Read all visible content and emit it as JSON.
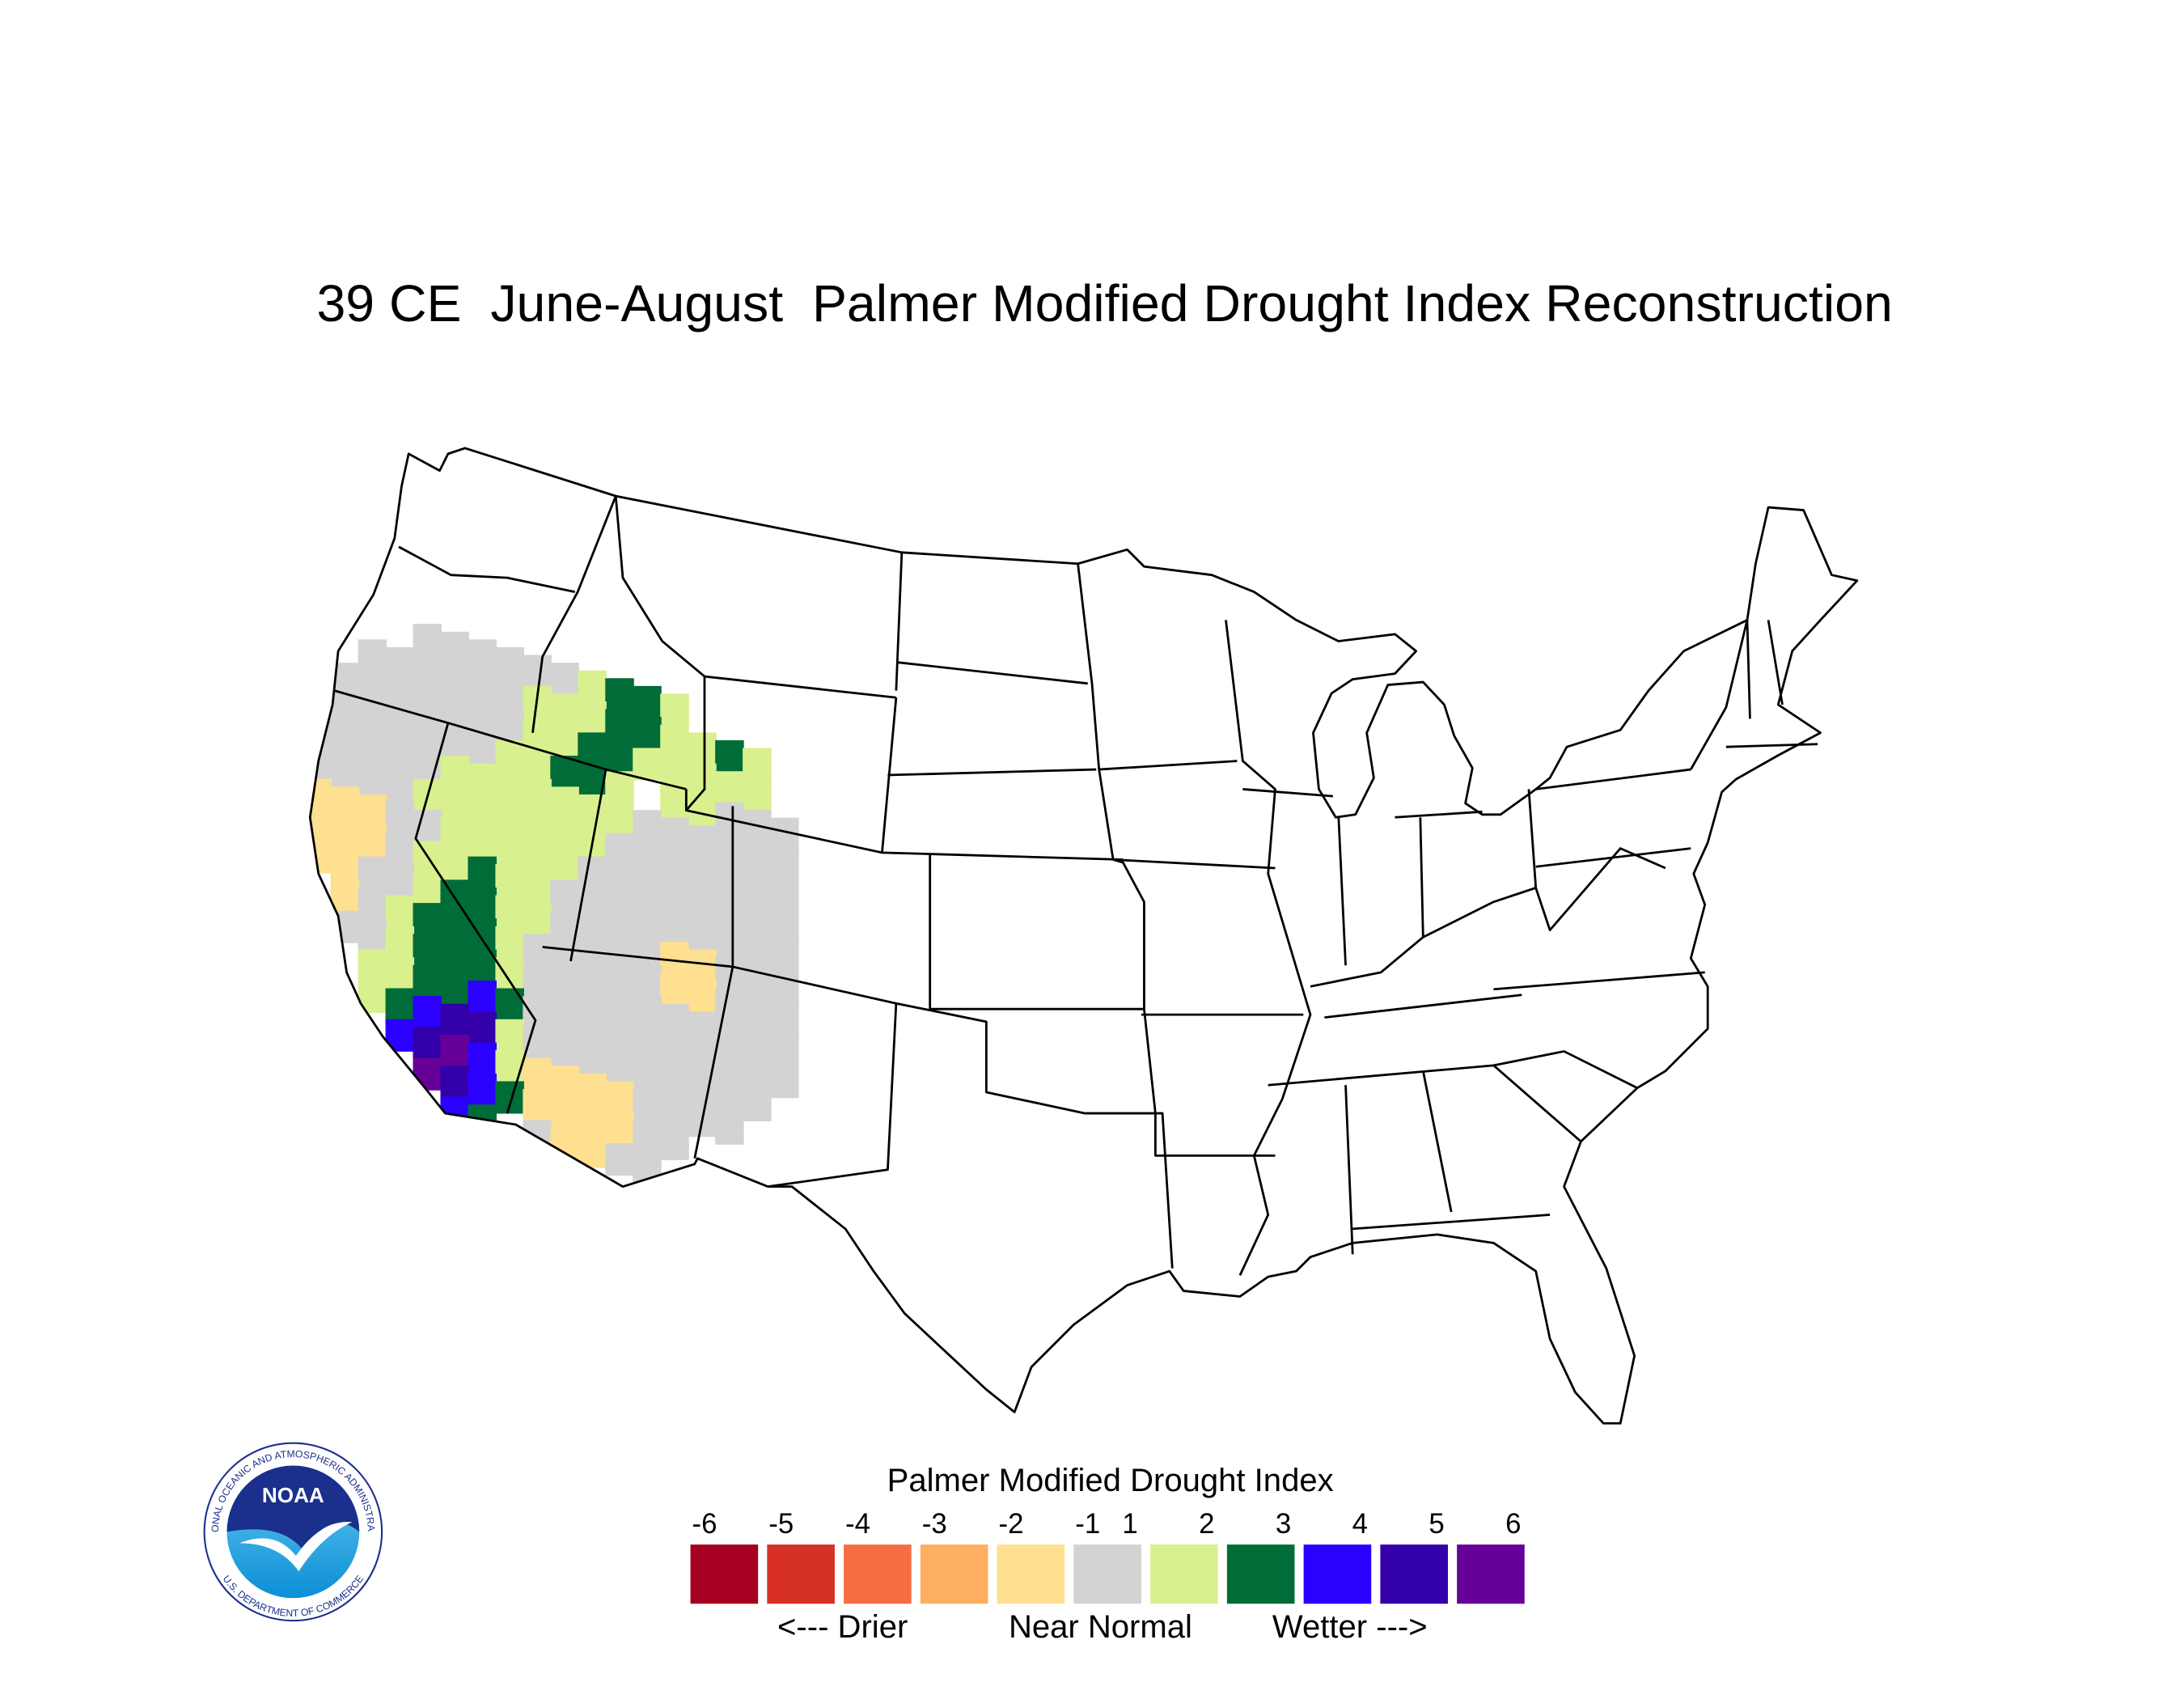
{
  "title": "39 CE  June-August  Palmer Modified Drought Index Reconstruction",
  "map": {
    "lon": [
      -124.5,
      -123.5,
      -122.5,
      -121.5,
      -120.5,
      -119.5,
      -118.5,
      -117.5,
      -116.5,
      -115.5,
      -114.5,
      -113.5,
      -112.5,
      -111.5,
      -110.5,
      -109.5,
      -108.5,
      -107.5
    ],
    "lat": [
      44.5,
      43.5,
      42.5,
      41.5,
      40.5,
      39.5,
      38.5,
      37.5,
      36.5,
      35.5,
      34.5,
      33.5,
      32.5,
      31.5,
      30.5,
      29.5
    ],
    "values": [
      [
        null,
        null,
        null,
        null,
        0,
        0,
        0,
        0,
        0,
        0,
        1.5,
        2.5,
        2.5,
        1.5,
        null,
        null,
        null,
        null
      ],
      [
        null,
        null,
        0,
        0,
        0,
        0,
        0,
        0,
        1.5,
        1.5,
        1.5,
        2.5,
        2.5,
        1.5,
        1.5,
        2.5,
        1.5,
        null
      ],
      [
        null,
        0,
        0,
        0,
        0,
        0,
        0,
        0,
        1.5,
        1.5,
        2.5,
        2.5,
        1.5,
        1.5,
        1.5,
        1.5,
        1.5,
        null
      ],
      [
        0,
        0,
        0,
        0,
        0,
        0,
        0,
        1.5,
        1.5,
        2.5,
        2.5,
        1.5,
        null,
        1.5,
        1.5,
        0,
        0,
        0
      ],
      [
        0,
        0,
        0,
        0,
        0,
        1.5,
        1.5,
        1.5,
        1.5,
        1.5,
        1.5,
        1.5,
        0,
        0,
        0,
        0,
        0,
        0
      ],
      [
        0,
        0,
        0,
        0,
        1.5,
        1.5,
        1.5,
        1.5,
        1.5,
        1.5,
        1.5,
        0,
        0,
        0,
        0,
        0,
        0,
        0
      ],
      [
        -1.5,
        -1.5,
        -1.5,
        0,
        0,
        1.5,
        1.5,
        1.5,
        1.5,
        1.5,
        0,
        0,
        0,
        0,
        0,
        0,
        0,
        0
      ],
      [
        -1.5,
        -1.5,
        -1.5,
        0,
        1.5,
        1.5,
        2.5,
        1.5,
        1.5,
        0,
        0,
        0,
        0,
        0,
        0,
        0,
        0,
        0
      ],
      [
        -1.5,
        -1.5,
        0,
        0,
        1.5,
        2.5,
        2.5,
        1.5,
        1.5,
        0,
        0,
        0,
        0,
        -1.5,
        -1.5,
        0,
        0,
        0
      ],
      [
        null,
        -1.5,
        0,
        1.5,
        2.5,
        2.5,
        2.5,
        1.5,
        0,
        0,
        0,
        0,
        0,
        -1.5,
        -1.5,
        0,
        0,
        0
      ],
      [
        null,
        0,
        0,
        1.5,
        2.5,
        2.5,
        2.5,
        1.5,
        0,
        0,
        0,
        0,
        0,
        0,
        0,
        0,
        0,
        0
      ],
      [
        null,
        null,
        1.5,
        1.5,
        2.5,
        2.5,
        3.5,
        2.5,
        0,
        0,
        0,
        0,
        0,
        0,
        0,
        0,
        0,
        0
      ],
      [
        null,
        null,
        1.5,
        2.5,
        3.5,
        4.5,
        4.5,
        1.5,
        0,
        0,
        0,
        0,
        0,
        0,
        0,
        0,
        0,
        null
      ],
      [
        null,
        null,
        null,
        3.5,
        4.5,
        5.5,
        3.5,
        1.5,
        -1.5,
        -1.5,
        -1.5,
        -1.5,
        0,
        0,
        0,
        0,
        null,
        null
      ],
      [
        null,
        null,
        null,
        null,
        5.5,
        4.5,
        3.5,
        2.5,
        -1.5,
        -1.5,
        -1.5,
        -1.5,
        0,
        0,
        null,
        null,
        null,
        null
      ],
      [
        null,
        null,
        null,
        null,
        null,
        3.5,
        2.5,
        null,
        0,
        -1.5,
        -1.5,
        0,
        0,
        null,
        null,
        null,
        null,
        null
      ]
    ]
  },
  "legend": {
    "title": "Palmer Modified Drought Index",
    "ticks": [
      -6,
      -5,
      -4,
      -3,
      -2,
      -1,
      1,
      2,
      3,
      4,
      5,
      6
    ],
    "colors": [
      "#a50021",
      "#d73027",
      "#f46d43",
      "#fdae61",
      "#fee090",
      "#d3d3d3",
      "#d9f08f",
      "#006d38",
      "#2b00ff",
      "#3300aa",
      "#660099"
    ],
    "captions": [
      "<--- Drier",
      "Near Normal",
      "Wetter --->"
    ]
  },
  "logo": {
    "name": "NOAA",
    "ring_top": "NATIONAL OCEANIC AND ATMOSPHERIC ADMINISTRATION",
    "ring_bottom": "U.S. DEPARTMENT OF COMMERCE"
  }
}
